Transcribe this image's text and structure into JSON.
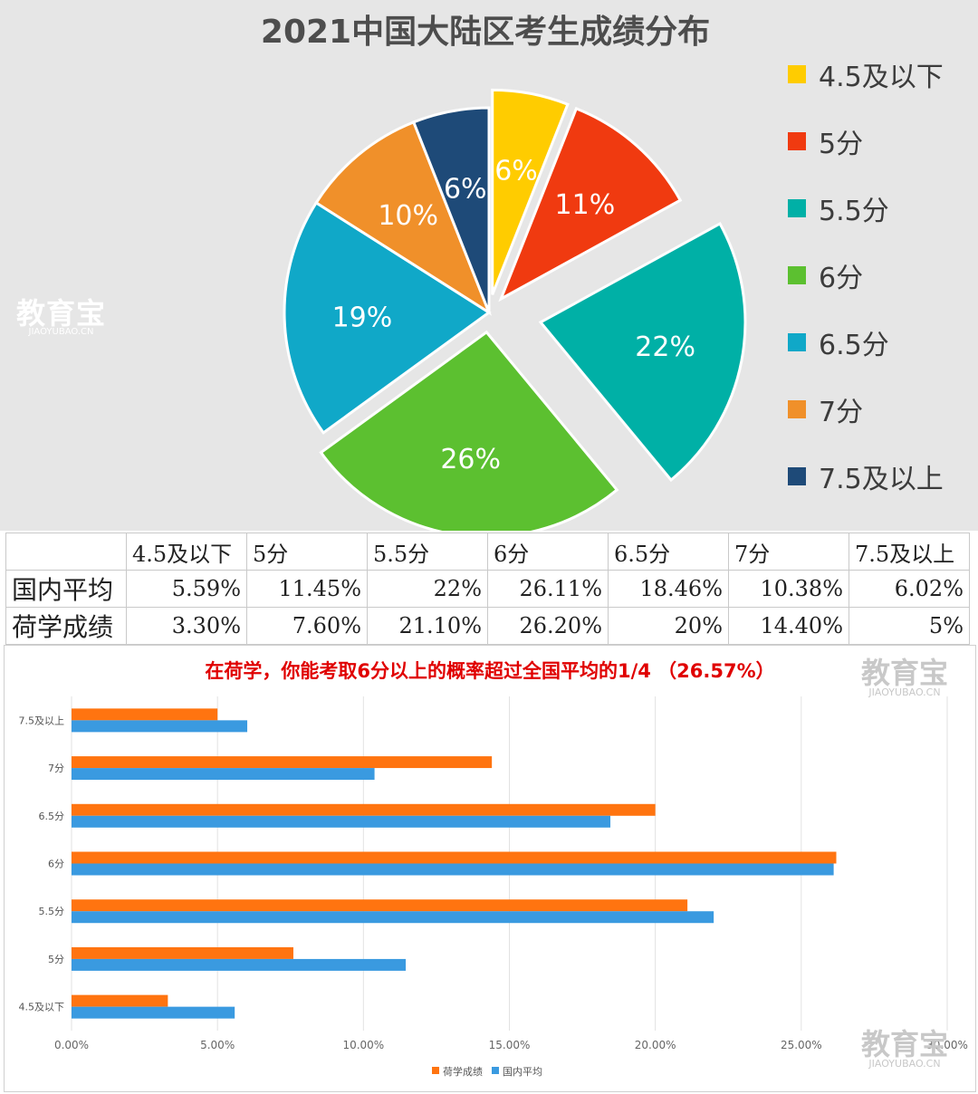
{
  "pie_title": "2021中国大陆区考生成绩分布",
  "legend": [
    {
      "label": "4.5及以下",
      "color": "#ffcc00"
    },
    {
      "label": "5分",
      "color": "#f03a10"
    },
    {
      "label": "5.5分",
      "color": "#00b0a6"
    },
    {
      "label": "6分",
      "color": "#5cc030"
    },
    {
      "label": "6.5分",
      "color": "#10a8c8"
    },
    {
      "label": "7分",
      "color": "#f0902a"
    },
    {
      "label": "7.5及以上",
      "color": "#1e4a78"
    }
  ],
  "watermark": {
    "big": "教育宝",
    "small": "JIAOYUBAO.CN"
  },
  "table": {
    "headers": [
      "",
      "4.5及以下",
      "5分",
      "5.5分",
      "6分",
      "6.5分",
      "7分",
      "7.5及以上"
    ],
    "rows": [
      {
        "label": "国内平均",
        "values": [
          "5.59%",
          "11.45%",
          "22%",
          "26.11%",
          "18.46%",
          "10.38%",
          "6.02%"
        ]
      },
      {
        "label": "荷学成绩",
        "values": [
          "3.30%",
          "7.60%",
          "21.10%",
          "26.20%",
          "20%",
          "14.40%",
          "5%"
        ]
      }
    ]
  },
  "chart_data": [
    {
      "type": "pie",
      "title": "2021中国大陆区考生成绩分布",
      "categories": [
        "4.5及以下",
        "5分",
        "5.5分",
        "6分",
        "6.5分",
        "7分",
        "7.5及以上"
      ],
      "values": [
        6,
        11,
        22,
        26,
        19,
        10,
        6
      ],
      "labels": [
        "6%",
        "11%",
        "22%",
        "26%",
        "19%",
        "10%",
        "6%"
      ],
      "exploded": [
        true,
        true,
        true,
        true,
        false,
        false,
        false
      ],
      "legend_position": "right"
    },
    {
      "type": "bar",
      "orientation": "horizontal",
      "title": "在荷学，你能考取6分以上的概率超过全国平均的1/4 （26.57%）",
      "categories": [
        "4.5及以下",
        "5分",
        "5.5分",
        "6分",
        "6.5分",
        "7分",
        "7.5及以上"
      ],
      "series": [
        {
          "name": "荷学成绩",
          "color": "#ff7410",
          "values": [
            3.3,
            7.6,
            21.1,
            26.2,
            20.0,
            14.4,
            5.0
          ]
        },
        {
          "name": "国内平均",
          "color": "#3a9ae0",
          "values": [
            5.59,
            11.45,
            22.0,
            26.11,
            18.46,
            10.38,
            6.02
          ]
        }
      ],
      "xticks": [
        "0.00%",
        "5.00%",
        "10.00%",
        "15.00%",
        "20.00%",
        "25.00%",
        "30.00%"
      ],
      "xlim": [
        0,
        30
      ],
      "grid": true,
      "legend_position": "bottom"
    }
  ]
}
